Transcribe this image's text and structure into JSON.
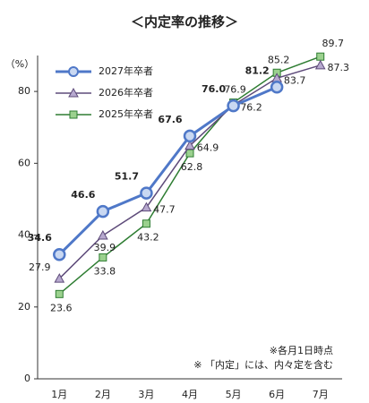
{
  "chart_data": {
    "type": "line",
    "title": "＜内定率の推移＞",
    "y_label": "（%）",
    "categories": [
      "1月",
      "2月",
      "3月",
      "4月",
      "5月",
      "6月",
      "7月"
    ],
    "series": [
      {
        "name": "2027年卒者",
        "color": "#4f78c8",
        "marker": "circle",
        "label_color": "#2d55b0",
        "values": [
          34.6,
          46.6,
          51.7,
          67.6,
          76.0,
          81.2,
          null
        ],
        "value_labels": [
          "34.6",
          "46.6",
          "51.7",
          "67.6",
          "76.0",
          "81.2",
          null
        ],
        "value_label_colors": [
          null,
          null,
          null,
          null,
          null,
          "#e0201b",
          null
        ]
      },
      {
        "name": "2026年卒者",
        "color": "#5e4b7a",
        "marker": "triangle",
        "label_color": "#6b6b6b",
        "values": [
          27.9,
          39.9,
          47.7,
          64.9,
          76.2,
          83.7,
          87.3
        ]
      },
      {
        "name": "2025年卒者",
        "color": "#2e7d32",
        "marker": "square",
        "label_color": "#2e7d32",
        "values": [
          23.6,
          33.8,
          43.2,
          62.8,
          76.9,
          85.2,
          89.7
        ]
      }
    ],
    "ylim": [
      0,
      90
    ],
    "yticks": [
      0,
      20,
      40,
      60,
      80
    ],
    "grid": false,
    "annotations": [
      "※各月1日時点",
      "※ 「内定」には、内々定を含む"
    ]
  }
}
